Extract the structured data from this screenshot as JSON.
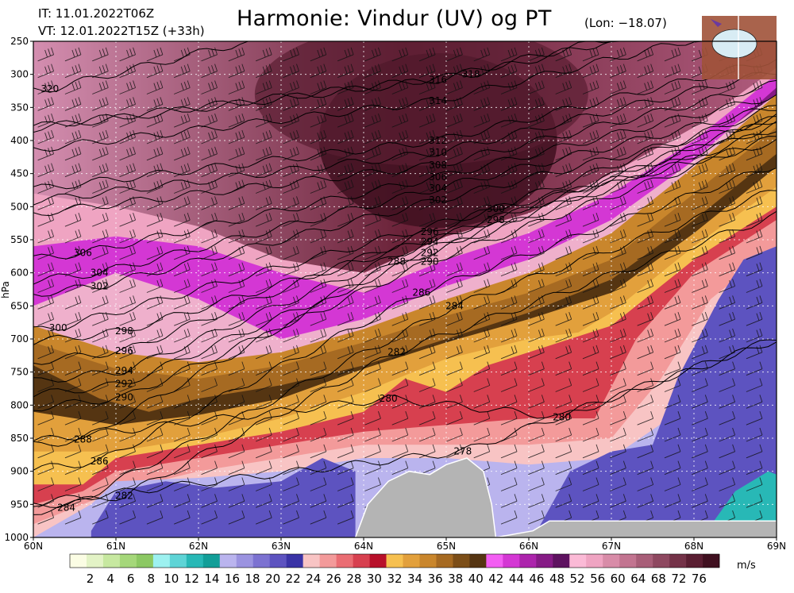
{
  "header": {
    "it": "IT: 11.01.2022T06Z",
    "vt": "VT: 12.01.2022T15Z (+33h)",
    "title": "Harmonie: Vindur (UV) og PT",
    "subtitle": "(Lon: −18.07)"
  },
  "chart_data": {
    "type": "heatmap",
    "title": "Harmonie: Vindur (UV) og PT",
    "subtitle": "(Lon: −18.07)",
    "xlabel": "",
    "ylabel": "hPa",
    "x_ticks": [
      "60N",
      "61N",
      "62N",
      "63N",
      "64N",
      "65N",
      "66N",
      "67N",
      "68N",
      "69N"
    ],
    "xlim": [
      60,
      69
    ],
    "y_ticks": [
      250,
      300,
      350,
      400,
      450,
      500,
      550,
      600,
      650,
      700,
      750,
      800,
      850,
      900,
      950,
      1000
    ],
    "ylim": [
      1000,
      250
    ],
    "grid": true,
    "colorbar": {
      "unit": "m/s",
      "ticks": [
        "2",
        "4",
        "6",
        "8",
        "10",
        "12",
        "14",
        "16",
        "18",
        "20",
        "22",
        "24",
        "26",
        "28",
        "30",
        "32",
        "34",
        "36",
        "38",
        "40",
        "42",
        "44",
        "46",
        "48",
        "52",
        "56",
        "60",
        "64",
        "68",
        "72",
        "76"
      ],
      "colors": [
        "#fbfde4",
        "#e3f3c6",
        "#c7e8a0",
        "#a5d77a",
        "#8cc863",
        "#9df1f0",
        "#5ed4d6",
        "#28b8b6",
        "#129e98",
        "#bab4ee",
        "#9b93e0",
        "#7c72d1",
        "#5d53c0",
        "#3a33a6",
        "#f8c4c4",
        "#f39a9a",
        "#ea6d73",
        "#d7404f",
        "#b8102a",
        "#f6c050",
        "#e2a03c",
        "#c9862c",
        "#a66a22",
        "#7c4e18",
        "#553512",
        "#f35ef3",
        "#d437d4",
        "#ac24ac",
        "#861b86",
        "#5e1260",
        "#fbbad6",
        "#efa4c2",
        "#d88ca8",
        "#c27490",
        "#a85e78",
        "#8e4860",
        "#743248",
        "#5a1e32",
        "#401020"
      ]
    },
    "isentropes_K": [
      {
        "value": 278,
        "lat": 65.2,
        "p": 870
      },
      {
        "value": 280,
        "lat": 64.3,
        "p": 790
      },
      {
        "value": 280,
        "lat": 66.4,
        "p": 818
      },
      {
        "value": 282,
        "lat": 61.1,
        "p": 937
      },
      {
        "value": 282,
        "lat": 64.4,
        "p": 720
      },
      {
        "value": 284,
        "lat": 60.4,
        "p": 955
      },
      {
        "value": 284,
        "lat": 65.1,
        "p": 650
      },
      {
        "value": 286,
        "lat": 60.8,
        "p": 885
      },
      {
        "value": 286,
        "lat": 64.7,
        "p": 630
      },
      {
        "value": 288,
        "lat": 60.6,
        "p": 852
      },
      {
        "value": 288,
        "lat": 64.4,
        "p": 583
      },
      {
        "value": 290,
        "lat": 61.1,
        "p": 788
      },
      {
        "value": 290,
        "lat": 64.8,
        "p": 583
      },
      {
        "value": 292,
        "lat": 61.1,
        "p": 768
      },
      {
        "value": 292,
        "lat": 64.8,
        "p": 570
      },
      {
        "value": 294,
        "lat": 61.1,
        "p": 748
      },
      {
        "value": 294,
        "lat": 64.8,
        "p": 553
      },
      {
        "value": 296,
        "lat": 61.1,
        "p": 718
      },
      {
        "value": 296,
        "lat": 64.8,
        "p": 538
      },
      {
        "value": 298,
        "lat": 61.1,
        "p": 688
      },
      {
        "value": 298,
        "lat": 65.6,
        "p": 520
      },
      {
        "value": 300,
        "lat": 60.3,
        "p": 683
      },
      {
        "value": 300,
        "lat": 65.6,
        "p": 503
      },
      {
        "value": 302,
        "lat": 60.8,
        "p": 620
      },
      {
        "value": 302,
        "lat": 64.9,
        "p": 490
      },
      {
        "value": 304,
        "lat": 60.8,
        "p": 600
      },
      {
        "value": 304,
        "lat": 64.9,
        "p": 472
      },
      {
        "value": 306,
        "lat": 60.6,
        "p": 570
      },
      {
        "value": 306,
        "lat": 64.9,
        "p": 455
      },
      {
        "value": 308,
        "lat": 64.9,
        "p": 437
      },
      {
        "value": 310,
        "lat": 64.9,
        "p": 418
      },
      {
        "value": 312,
        "lat": 64.9,
        "p": 400
      },
      {
        "value": 314,
        "lat": 64.9,
        "p": 340
      },
      {
        "value": 316,
        "lat": 64.9,
        "p": 308
      },
      {
        "value": 318,
        "lat": 65.3,
        "p": 300
      },
      {
        "value": 320,
        "lat": 60.2,
        "p": 322
      }
    ],
    "terrain": [
      {
        "lat": 63.9,
        "p": 1000
      },
      {
        "lat": 64.05,
        "p": 950
      },
      {
        "lat": 64.3,
        "p": 915
      },
      {
        "lat": 64.55,
        "p": 900
      },
      {
        "lat": 64.8,
        "p": 905
      },
      {
        "lat": 65.0,
        "p": 890
      },
      {
        "lat": 65.25,
        "p": 880
      },
      {
        "lat": 65.45,
        "p": 900
      },
      {
        "lat": 65.55,
        "p": 950
      },
      {
        "lat": 65.6,
        "p": 1000
      },
      {
        "lat": 66.05,
        "p": 990
      },
      {
        "lat": 66.25,
        "p": 975
      },
      {
        "lat": 69.0,
        "p": 975
      }
    ],
    "wind_barbs": "wind barbs at grid levels from 250 to 1000 hPa"
  }
}
